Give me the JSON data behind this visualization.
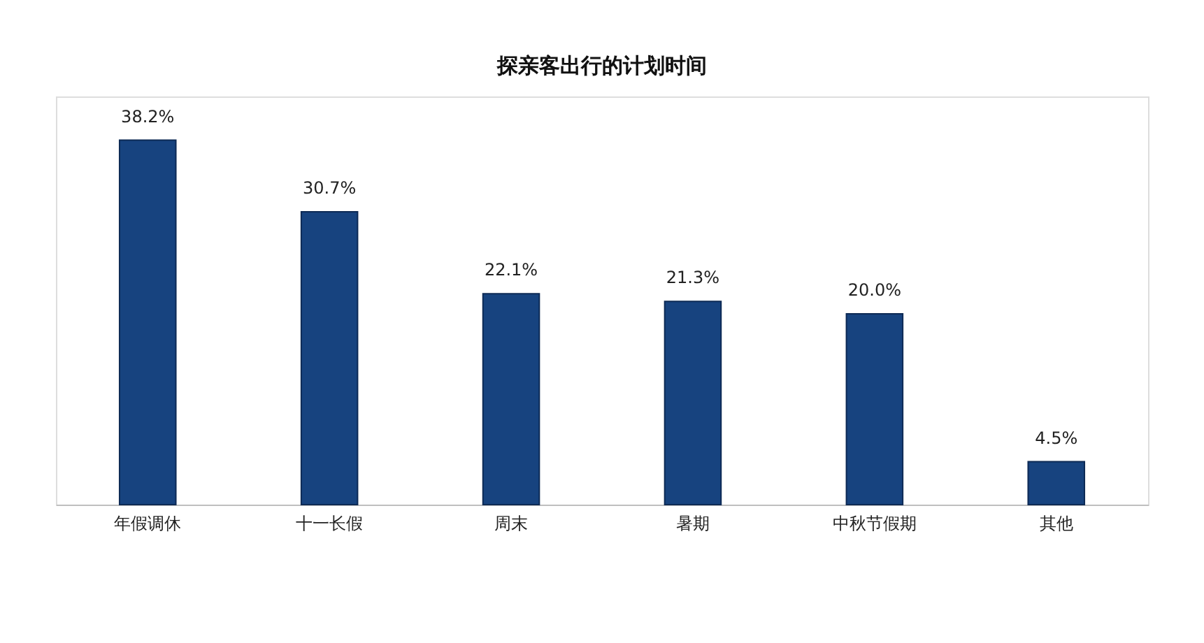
{
  "chart_data": {
    "type": "bar",
    "title": "探亲客出行的计划时间",
    "categories": [
      "年假调休",
      "十一长假",
      "周末",
      "暑期",
      "中秋节假期",
      "其他"
    ],
    "values": [
      38.2,
      30.7,
      22.1,
      21.3,
      20.0,
      4.5
    ],
    "value_labels": [
      "38.2%",
      "30.7%",
      "22.1%",
      "21.3%",
      "20.0%",
      "4.5%"
    ],
    "color": "#17437f"
  }
}
